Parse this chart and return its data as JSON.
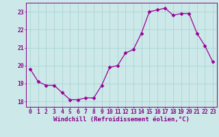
{
  "x": [
    0,
    1,
    2,
    3,
    4,
    5,
    6,
    7,
    8,
    9,
    10,
    11,
    12,
    13,
    14,
    15,
    16,
    17,
    18,
    19,
    20,
    21,
    22,
    23
  ],
  "y": [
    19.8,
    19.1,
    18.9,
    18.9,
    18.5,
    18.1,
    18.1,
    18.2,
    18.2,
    18.9,
    19.9,
    20.0,
    20.7,
    20.9,
    21.8,
    23.0,
    23.1,
    23.2,
    22.8,
    22.9,
    22.9,
    21.8,
    21.1,
    20.2
  ],
  "line_color": "#990099",
  "marker": "D",
  "marker_size": 2.5,
  "background_color": "#cce8e8",
  "grid_color": "#aad4d4",
  "xlabel": "Windchill (Refroidissement éolien,°C)",
  "xlim": [
    -0.5,
    23.5
  ],
  "ylim": [
    17.7,
    23.5
  ],
  "yticks": [
    18,
    19,
    20,
    21,
    22,
    23
  ],
  "xticks": [
    0,
    1,
    2,
    3,
    4,
    5,
    6,
    7,
    8,
    9,
    10,
    11,
    12,
    13,
    14,
    15,
    16,
    17,
    18,
    19,
    20,
    21,
    22,
    23
  ],
  "tick_color": "#880088",
  "xlabel_fontsize": 6.5,
  "tick_fontsize": 5.8,
  "linewidth": 0.9
}
